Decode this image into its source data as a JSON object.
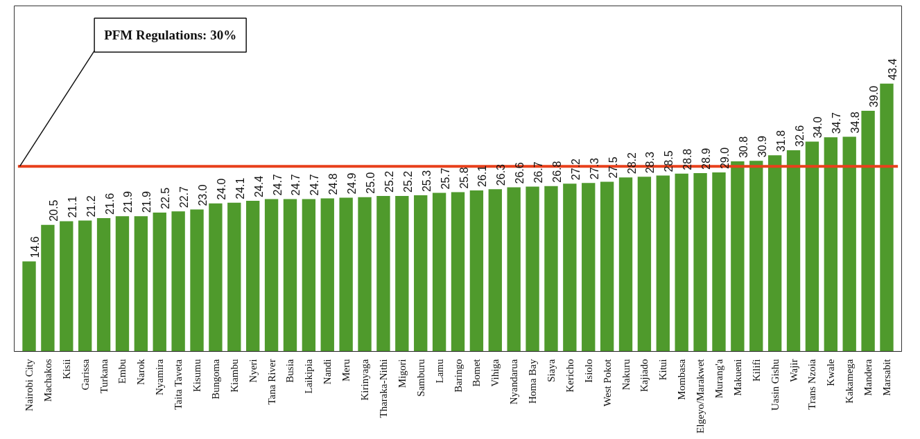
{
  "chart_data": {
    "type": "bar",
    "categories": [
      "Nairobi City",
      "Machakos",
      "Kisii",
      "Garissa",
      "Turkana",
      "Embu",
      "Narok",
      "Nyamira",
      "Taita Taveta",
      "Kisumu",
      "Bungoma",
      "Kiambu",
      "Nyeri",
      "Tana River",
      "Busia",
      "Laikipia",
      "Nandi",
      "Meru",
      "Kirinyaga",
      "Tharaka-Nithi",
      "Migori",
      "Samburu",
      "Lamu",
      "Baringo",
      "Bomet",
      "Vihiga",
      "Nyandarua",
      "Homa Bay",
      "Siaya",
      "Kericho",
      "Isiolo",
      "West Pokot",
      "Nakuru",
      "Kajiado",
      "Kitui",
      "Mombasa",
      "Elgeyo/Marakwet",
      "Murang'a",
      "Makueni",
      "Kilifi",
      "Uasin Gishu",
      "Wajir",
      "Trans Nzoia",
      "Kwale",
      "Kakamega",
      "Mandera",
      "Marsabit"
    ],
    "values": [
      14.6,
      20.5,
      21.1,
      21.2,
      21.6,
      21.9,
      21.9,
      22.5,
      22.7,
      23.0,
      24.0,
      24.1,
      24.4,
      24.7,
      24.7,
      24.7,
      24.8,
      24.9,
      25.0,
      25.2,
      25.2,
      25.3,
      25.7,
      25.8,
      26.1,
      26.3,
      26.6,
      26.7,
      26.8,
      27.2,
      27.3,
      27.5,
      28.2,
      28.3,
      28.5,
      28.8,
      28.9,
      29.0,
      30.8,
      30.9,
      31.8,
      32.6,
      34.0,
      34.7,
      34.8,
      39.0,
      43.4
    ],
    "value_labels": [
      "14.6",
      "20.5",
      "21.1",
      "21.2",
      "21.6",
      "21.9",
      "21.9",
      "22.5",
      "22.7",
      "23.0",
      "24.0",
      "24.1",
      "24.4",
      "24.7",
      "24.7",
      "24.7",
      "24.8",
      "24.9",
      "25.0",
      "25.2",
      "25.2",
      "25.3",
      "25.7",
      "25.8",
      "26.1",
      "26.3",
      "26.6",
      "26.7",
      "26.8",
      "27.2",
      "27.3",
      "27.5",
      "28.2",
      "28.3",
      "28.5",
      "28.8",
      "28.9",
      "29.0",
      "30.8",
      "30.9",
      "31.8",
      "32.6",
      "34.0",
      "34.7",
      "34.8",
      "39.0",
      "43.4"
    ],
    "color": "#4f9a2c",
    "ylim": [
      0,
      56
    ],
    "tick_labels": "x",
    "grid": false,
    "ref_lines": [
      {
        "axis": "y",
        "value": 30,
        "label": "PFM Regulations: 30%",
        "color": "#e8401c"
      }
    ]
  }
}
